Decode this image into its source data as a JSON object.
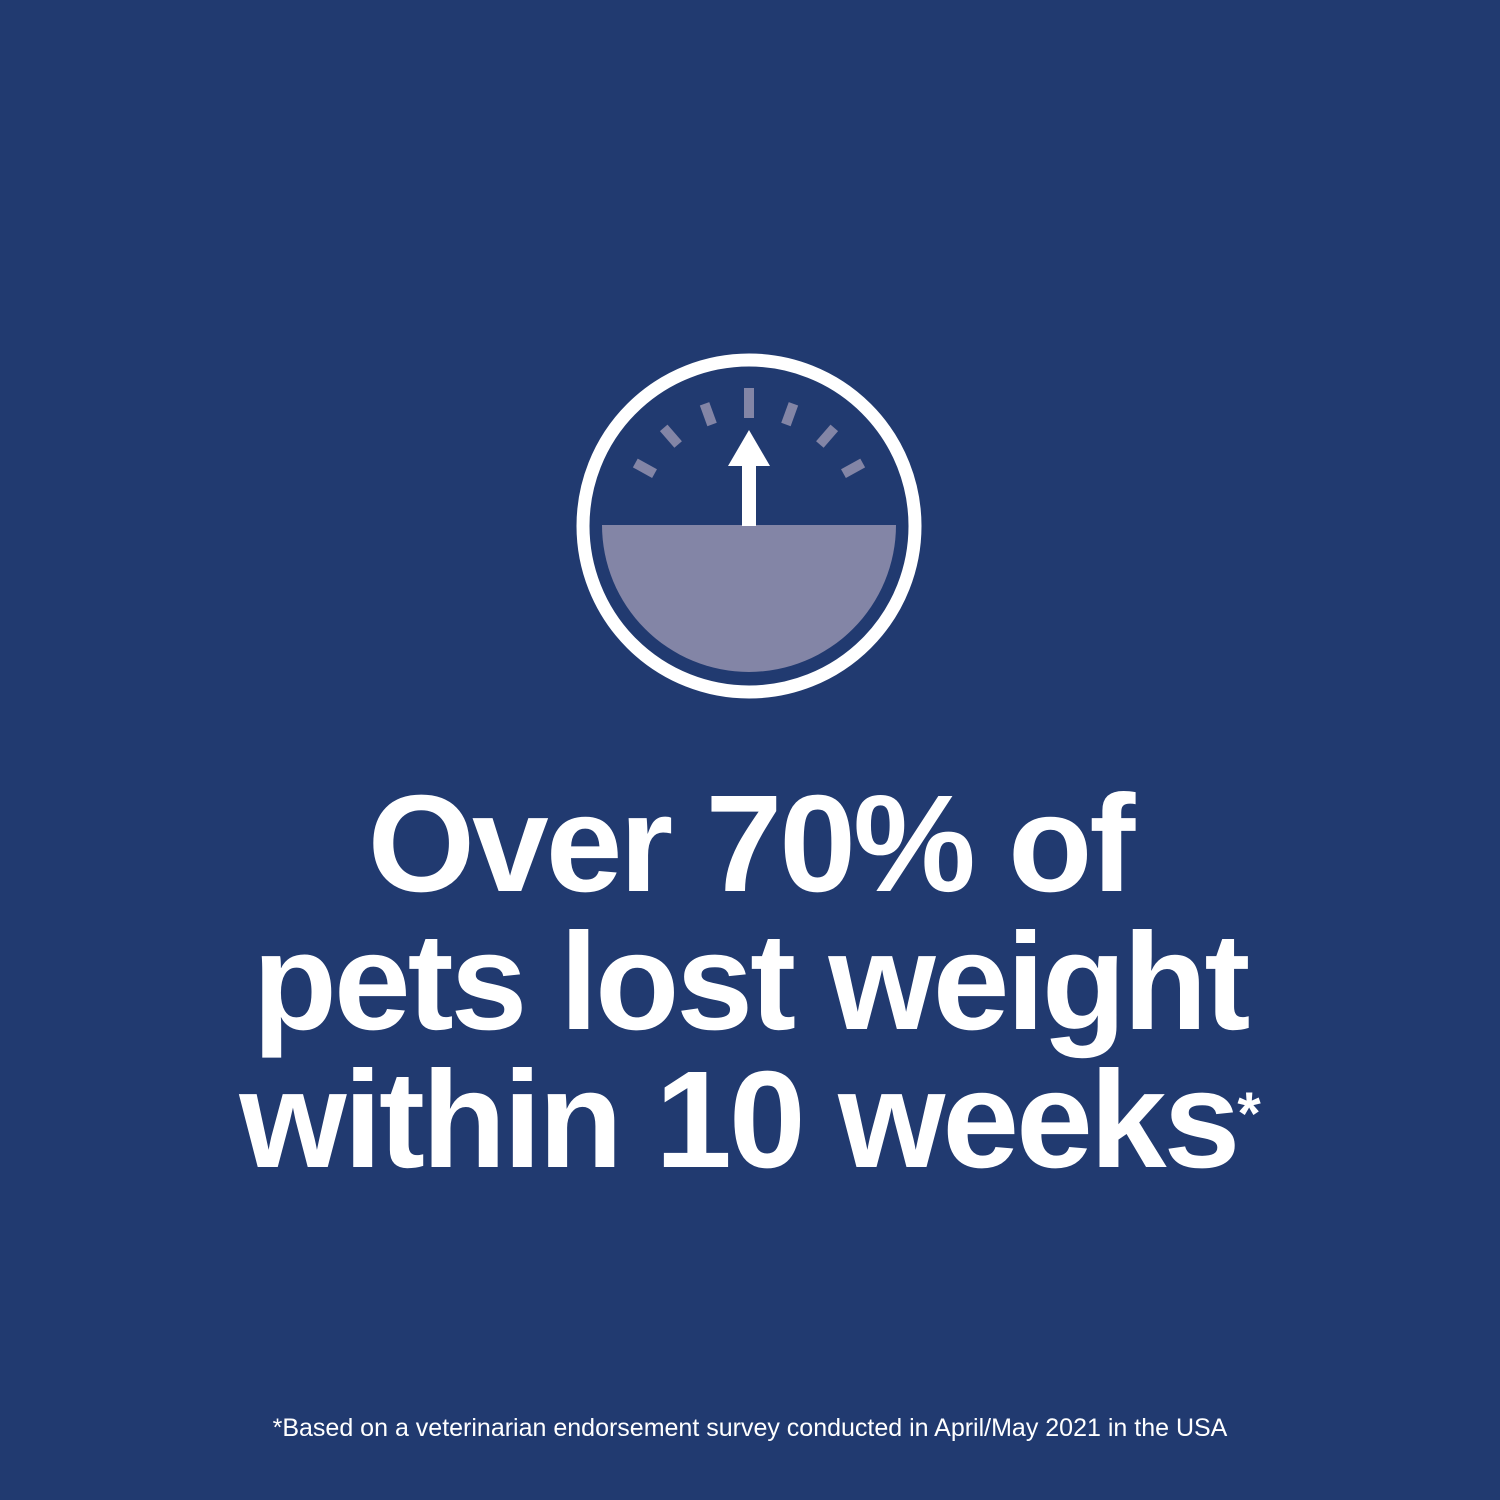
{
  "icon": {
    "name": "scale-gauge-icon",
    "ring_color": "#ffffff",
    "fill_color": "#8385a6",
    "background": "#213a70"
  },
  "headline": {
    "line1": "Over 70% of",
    "line2": "pets lost weight",
    "line3": "within 10 weeks",
    "asterisk": "*"
  },
  "footnote": "*Based on a veterinarian endorsement survey conducted in April/May 2021 in the USA"
}
